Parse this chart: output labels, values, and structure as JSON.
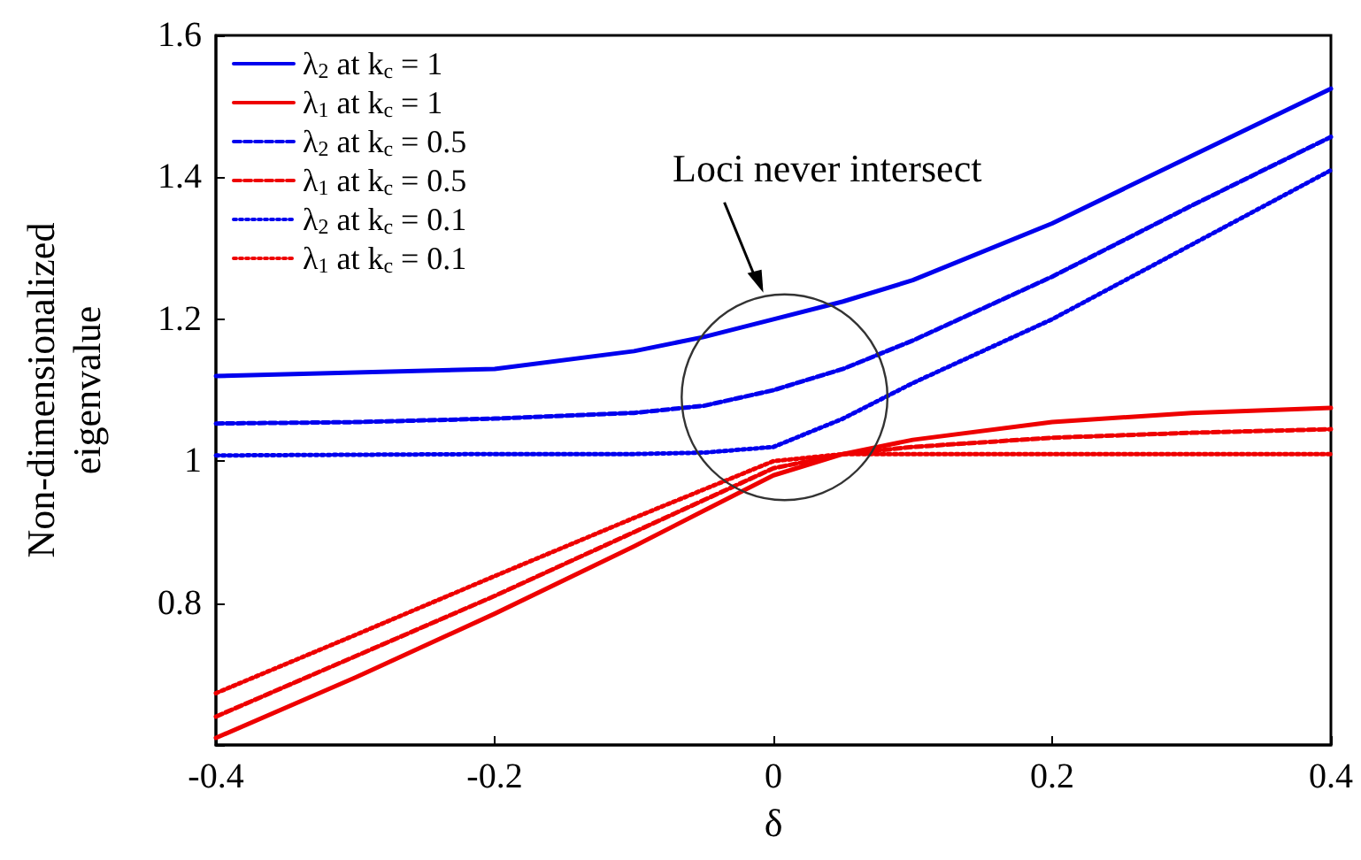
{
  "chart_data": {
    "type": "line",
    "xlabel": "δ",
    "ylabel": "Non-dimensionalized\neigenvalue",
    "x": [
      -0.4,
      -0.3,
      -0.2,
      -0.1,
      -0.05,
      0,
      0.05,
      0.1,
      0.2,
      0.3,
      0.4
    ],
    "xlim": [
      -0.4,
      0.4
    ],
    "xticks": [
      -0.4,
      -0.2,
      0,
      0.2,
      0.4
    ],
    "ylim": [
      0.6,
      1.6
    ],
    "yticks": [
      {
        "value": 0.6,
        "label": null
      },
      0.8,
      1,
      1.2,
      1.4,
      1.6
    ],
    "grid": false,
    "legend": "top left",
    "marker": "none",
    "annotations": [
      "Loci never intersect"
    ],
    "series": [
      {
        "name": "λ$_{2}$ at k$_{c}$ = 1",
        "color": "#0000ee",
        "line_style": "solid",
        "values": [
          1.12,
          1.125,
          1.13,
          1.155,
          1.175,
          1.2,
          1.225,
          1.255,
          1.335,
          1.43,
          1.525
        ]
      },
      {
        "name": "λ$_{1}$ at k$_{c}$ = 1",
        "color": "#ee0000",
        "line_style": "solid",
        "values": [
          0.61,
          0.695,
          0.785,
          0.88,
          0.93,
          0.98,
          1.01,
          1.03,
          1.055,
          1.068,
          1.075
        ]
      },
      {
        "name": "λ$_{2}$ at k$_{c}$ = 0.5",
        "color": "#0000ee",
        "line_style": "dashed",
        "values": [
          1.053,
          1.055,
          1.06,
          1.068,
          1.078,
          1.1,
          1.13,
          1.17,
          1.26,
          1.36,
          1.457
        ]
      },
      {
        "name": "λ$_{1}$ at k$_{c}$ = 0.5",
        "color": "#ee0000",
        "line_style": "dashed",
        "values": [
          0.64,
          0.725,
          0.81,
          0.9,
          0.945,
          0.99,
          1.01,
          1.02,
          1.033,
          1.04,
          1.045
        ]
      },
      {
        "name": "λ$_{2}$ at k$_{c}$ = 0.1",
        "color": "#0000ee",
        "line_style": "dotted",
        "values": [
          1.008,
          1.009,
          1.01,
          1.01,
          1.012,
          1.02,
          1.06,
          1.11,
          1.2,
          1.305,
          1.41
        ]
      },
      {
        "name": "λ$_{1}$ at k$_{c}$ = 0.1",
        "color": "#ee0000",
        "line_style": "dotted",
        "values": [
          0.673,
          0.755,
          0.838,
          0.92,
          0.96,
          1.0,
          1.01,
          1.01,
          1.01,
          1.01,
          1.01
        ]
      }
    ]
  }
}
